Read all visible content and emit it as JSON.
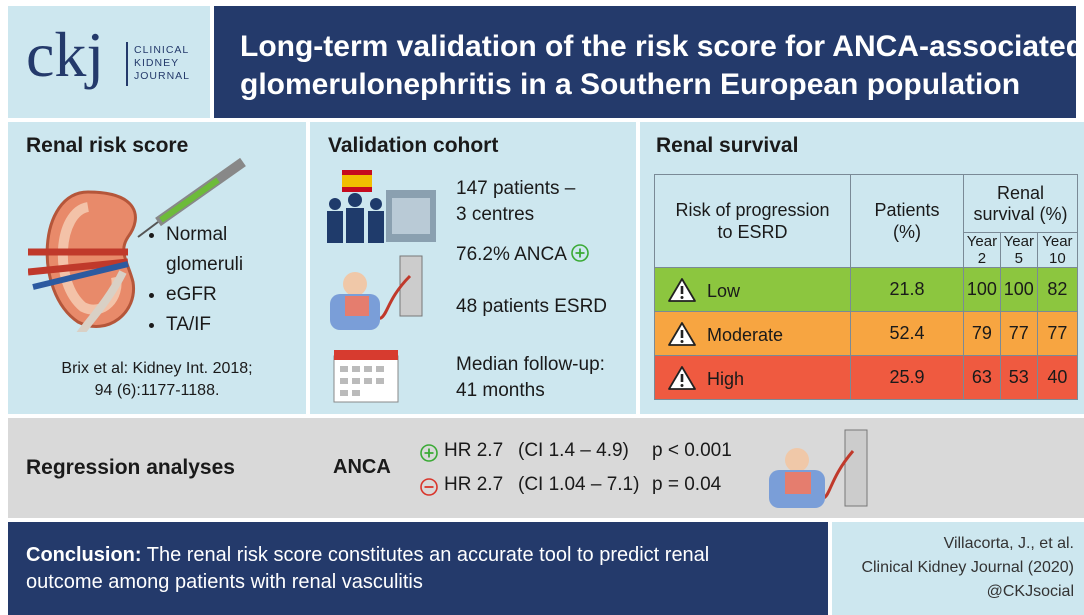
{
  "header": {
    "logo": {
      "mark": "ckj",
      "lines": [
        "CLINICAL",
        "KIDNEY",
        "JOURNAL"
      ]
    },
    "title_lines": [
      "Long-term validation of the risk score for ANCA-associated",
      "glomerulonephritis in a Southern European population"
    ]
  },
  "risk_score": {
    "title": "Renal risk score",
    "items": [
      "Normal glomeruli",
      "eGFR",
      "TA/IF"
    ],
    "reference": [
      "Brix et al: Kidney Int. 2018;",
      "94 (6):1177-1188."
    ]
  },
  "cohort": {
    "title": "Validation cohort",
    "items": [
      [
        "147 patients –",
        "3 centres"
      ],
      [
        "76.2% ANCA"
      ],
      [
        "48 patients ESRD"
      ],
      [
        "Median follow-up:",
        "41 months"
      ]
    ]
  },
  "survival": {
    "title": "Renal survival",
    "table": {
      "headers": [
        "Risk of progression to ESRD",
        "Patients (%)",
        "Renal survival (%)"
      ],
      "subheaders": [
        "Year 2",
        "Year 5",
        "Year 10"
      ],
      "rows": [
        [
          "Low",
          21.8,
          100,
          100,
          82
        ],
        [
          "Moderate",
          52.4,
          79,
          77,
          77
        ],
        [
          "High",
          25.9,
          63,
          53,
          40
        ]
      ]
    }
  },
  "regression": {
    "title": "Regression analyses",
    "variable": "ANCA",
    "rows": [
      [
        "HR 2.7",
        "(CI 1.4 – 4.9)",
        "p < 0.001"
      ],
      [
        "HR 2.7",
        "(CI 1.04 – 7.1)",
        "p = 0.04"
      ]
    ]
  },
  "footer": {
    "conclusion_label": "Conclusion:",
    "conclusion": "The renal risk score constitutes an accurate tool to predict renal outcome among patients with renal vasculitis",
    "citation": [
      "Villacorta, J., et al.",
      "Clinical Kidney Journal (2020)",
      "@CKJsocial"
    ]
  }
}
